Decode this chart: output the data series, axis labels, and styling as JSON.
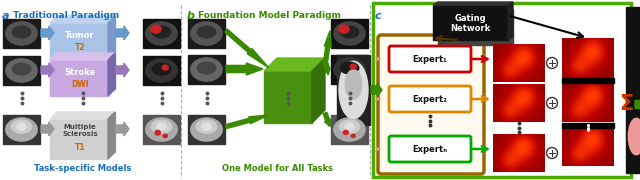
{
  "title_a": "Traditional Paradigm",
  "title_b": "Foundation Model Paradigm",
  "label_a": "a",
  "label_b": "b",
  "label_c": "c",
  "title_a_color": "#1a6fbd",
  "title_b_color": "#3a8a00",
  "footer_a": "Task-specific Models",
  "footer_b": "One Model for All Tasks",
  "footer_a_color": "#1a6fbd",
  "footer_b_color": "#3a8a00",
  "tumor_label": "Tumor",
  "tumor_sub": "T2",
  "stroke_label": "Stroke",
  "stroke_sub": "DWI",
  "ms_label": "Multiple\nSclerosis",
  "ms_sub": "T1",
  "tumor_box_color": "#aac4e8",
  "stroke_box_color": "#c8a8e0",
  "ms_box_color": "#d0d0d0",
  "orange_color": "#cc6600",
  "expert1_label": "Expert₁",
  "expert2_label": "Expert₂",
  "expertn_label": "Expertₙ",
  "gating_label": "Gating\nNetwork",
  "expert1_border": "#cc0000",
  "expert2_border": "#dd8800",
  "expertn_border": "#00aa00",
  "experts_outer_border": "#996600",
  "panel_c_border": "#4aaa00",
  "arrow_green": "#3a8a00",
  "sigma_color": "#cc3300",
  "background": "#ffffff",
  "label_color": "#1a6fbd",
  "label_b_color": "#3a8a00"
}
